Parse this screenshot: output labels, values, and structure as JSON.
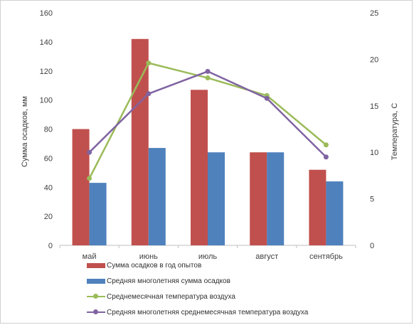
{
  "chart_data": {
    "type": "bar",
    "categories": [
      "май",
      "июнь",
      "июль",
      "август",
      "сентябрь"
    ],
    "ylabel_left": "Сумма осадков, мм",
    "ylabel_right": "Температура, С",
    "ylim_left": [
      0,
      160
    ],
    "yticks_left": [
      0,
      20,
      40,
      60,
      80,
      100,
      120,
      140,
      160
    ],
    "ylim_right": [
      0,
      25
    ],
    "yticks_right": [
      0,
      5,
      10,
      15,
      20,
      25
    ],
    "grid": false,
    "legend_position": "bottom",
    "series": [
      {
        "name": "Сумма осадков в год опытов",
        "kind": "bar",
        "axis": "left",
        "color": "#C0504D",
        "values": [
          80,
          142,
          107,
          64,
          52
        ]
      },
      {
        "name": "Средняя многолетняя сумма осадков",
        "kind": "bar",
        "axis": "left",
        "color": "#4F81BD",
        "values": [
          43,
          67,
          64,
          64,
          44
        ]
      },
      {
        "name": "Среднемесячная температура воздуха",
        "kind": "line",
        "axis": "right",
        "color": "#9BBB59",
        "values": [
          7.2,
          19.6,
          18.0,
          16.1,
          10.8
        ]
      },
      {
        "name": "Средняя многолетняя среднемесячная температура воздуха",
        "kind": "line",
        "axis": "right",
        "color": "#8064A2",
        "values": [
          10.0,
          16.3,
          18.7,
          15.8,
          9.5
        ]
      }
    ]
  }
}
